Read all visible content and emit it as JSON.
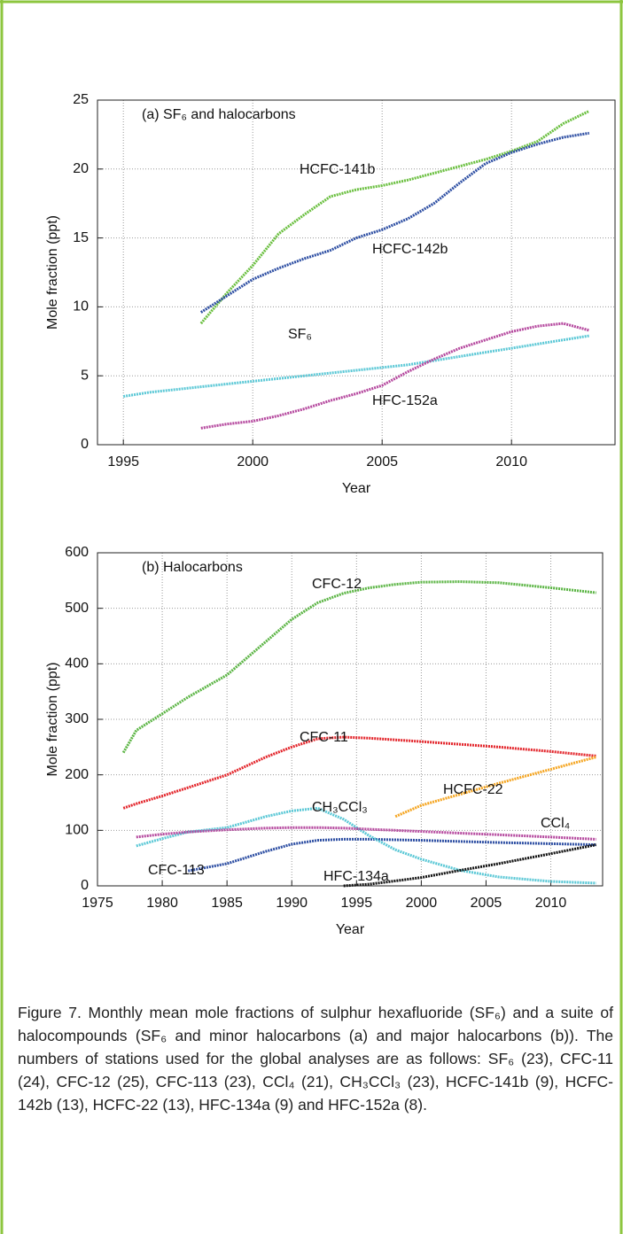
{
  "chart_data": [
    {
      "type": "line",
      "title": "(a) SF₆ and halocarbons",
      "xlabel": "Year",
      "ylabel": "Mole fraction (ppt)",
      "x": [
        1995,
        1996,
        1997,
        1998,
        1999,
        2000,
        2001,
        2002,
        2003,
        2004,
        2005,
        2006,
        2007,
        2008,
        2009,
        2010,
        2011,
        2012,
        2013
      ],
      "xlim": [
        1994,
        2014
      ],
      "xticks": [
        1995,
        2000,
        2005,
        2010
      ],
      "ylim": [
        0,
        25
      ],
      "yticks": [
        0,
        5,
        10,
        15,
        20,
        25
      ],
      "grid": true,
      "series": [
        {
          "name": "HCFC-141b",
          "color": "#6abf3f",
          "values": [
            null,
            null,
            null,
            8.8,
            11,
            13,
            15.3,
            16.7,
            18,
            18.5,
            18.8,
            19.2,
            19.7,
            20.2,
            20.7,
            21.3,
            22,
            23.3,
            24.2
          ]
        },
        {
          "name": "HCFC-142b",
          "color": "#2e4fa3",
          "values": [
            null,
            null,
            null,
            9.6,
            10.8,
            12,
            12.8,
            13.5,
            14.1,
            15,
            15.6,
            16.4,
            17.5,
            19,
            20.4,
            21.2,
            21.8,
            22.3,
            22.6
          ]
        },
        {
          "name": "SF₆",
          "color": "#5bc8d6",
          "values": [
            3.5,
            3.8,
            4.0,
            4.2,
            4.4,
            4.6,
            4.8,
            5.0,
            5.2,
            5.4,
            5.6,
            5.8,
            6.1,
            6.4,
            6.7,
            7.0,
            7.3,
            7.6,
            7.9
          ]
        },
        {
          "name": "HFC-152a",
          "color": "#b5489e",
          "values": [
            null,
            null,
            null,
            1.2,
            1.5,
            1.7,
            2.1,
            2.6,
            3.2,
            3.7,
            4.3,
            5.3,
            6.2,
            7.0,
            7.6,
            8.2,
            8.6,
            8.8,
            8.3
          ]
        }
      ]
    },
    {
      "type": "line",
      "title": "(b) Halocarbons",
      "xlabel": "Year",
      "ylabel": "Mole fraction (ppt)",
      "x": [
        1977,
        1978,
        1980,
        1982,
        1985,
        1988,
        1990,
        1992,
        1994,
        1996,
        1998,
        2000,
        2003,
        2006,
        2010,
        2013.5
      ],
      "xlim": [
        1975,
        2014
      ],
      "xticks": [
        1975,
        1980,
        1985,
        1990,
        1995,
        2000,
        2005,
        2010
      ],
      "ylim": [
        0,
        600
      ],
      "yticks": [
        0,
        100,
        200,
        300,
        400,
        500,
        600
      ],
      "grid": true,
      "series": [
        {
          "name": "CFC-12",
          "color": "#5cb545",
          "values": [
            240,
            280,
            310,
            340,
            380,
            440,
            480,
            510,
            527,
            537,
            543,
            547,
            548,
            546,
            537,
            528
          ]
        },
        {
          "name": "CFC-11",
          "color": "#e3262c",
          "values": [
            140,
            148,
            162,
            177,
            200,
            232,
            250,
            265,
            268,
            266,
            263,
            260,
            255,
            250,
            242,
            234
          ]
        },
        {
          "name": "HCFC-22",
          "color": "#f5a623",
          "values": [
            null,
            null,
            null,
            null,
            null,
            null,
            null,
            null,
            null,
            null,
            125,
            145,
            165,
            185,
            210,
            232
          ]
        },
        {
          "name": "CFC-113",
          "color": "#2e4fa3",
          "values": [
            null,
            null,
            null,
            27,
            40,
            62,
            75,
            82,
            84,
            84,
            83,
            82,
            80,
            78,
            76,
            74
          ]
        },
        {
          "name": "CH₃CCl₃",
          "color": "#5bc8d6",
          "values": [
            null,
            72,
            85,
            97,
            105,
            125,
            135,
            140,
            120,
            90,
            65,
            48,
            28,
            16,
            8,
            5
          ]
        },
        {
          "name": "CCl₄",
          "color": "#b5489e",
          "values": [
            null,
            88,
            93,
            97,
            101,
            104,
            105,
            105,
            104,
            102,
            100,
            98,
            95,
            92,
            88,
            84
          ]
        },
        {
          "name": "HFC-134a",
          "color": "#111111",
          "values": [
            null,
            null,
            null,
            null,
            null,
            null,
            null,
            null,
            0,
            3,
            9,
            15,
            28,
            40,
            58,
            74
          ]
        }
      ]
    }
  ],
  "caption": "Figure 7. Monthly mean mole fractions of sulphur hexafluoride (SF₆) and a suite of halocompounds (SF₆ and minor halocarbons (a) and major halocarbons (b)). The numbers of stations used for the global analyses are as follows: SF₆ (23), CFC-11 (24), CFC-12 (25), CFC-113 (23), CCl₄ (21), CH₃CCl₃ (23), HCFC-141b (9), HCFC-142b (13), HCFC-22 (13), HFC-134a (9) and HFC-152a (8)."
}
